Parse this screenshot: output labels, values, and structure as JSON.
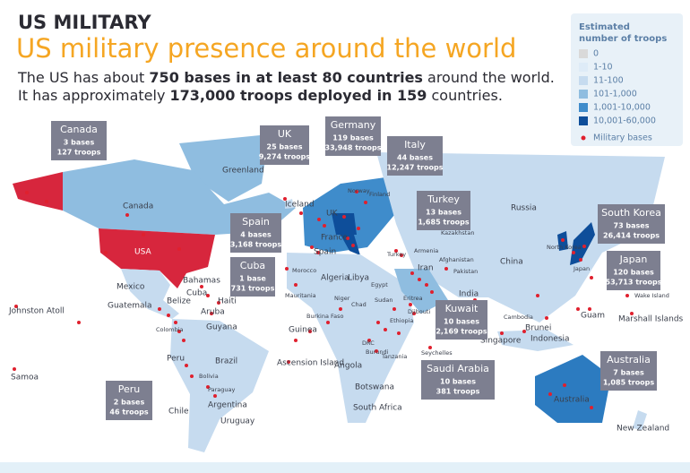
{
  "header": {
    "kicker": "US MILITARY",
    "title": "US military presence around the world",
    "subtitle": [
      [
        "The US has about ",
        "750 bases in at least 80 countries",
        " around the world."
      ],
      [
        "It has approximately ",
        "173,000 troops deployed in 159",
        " countries."
      ]
    ]
  },
  "legend": {
    "title": [
      "Estimated",
      "number of troops"
    ],
    "items": [
      {
        "label": "0",
        "color": "#d9d9d9"
      },
      {
        "label": "1-10",
        "color": "#deebf7"
      },
      {
        "label": "11-100",
        "color": "#c6dbef"
      },
      {
        "label": "101-1,000",
        "color": "#8fbde0"
      },
      {
        "label": "1,001-10,000",
        "color": "#3f8ccb"
      },
      {
        "label": "10,001-60,000",
        "color": "#0e4e9a"
      }
    ],
    "bases": {
      "label": "Military bases",
      "color": "#e0202e"
    }
  },
  "callouts": [
    {
      "name": "Canada",
      "bases": "3 bases",
      "troops": "127 troops"
    },
    {
      "name": "UK",
      "bases": "25 bases",
      "troops": "9,274 troops"
    },
    {
      "name": "Germany",
      "bases": "119 bases",
      "troops": "33,948 troops"
    },
    {
      "name": "Italy",
      "bases": "44 bases",
      "troops": "12,247 troops"
    },
    {
      "name": "Turkey",
      "bases": "13 bases",
      "troops": "1,685 troops"
    },
    {
      "name": "Spain",
      "bases": "4 bases",
      "troops": "3,168 troops"
    },
    {
      "name": "Cuba",
      "bases": "1 base",
      "troops": "731 troops"
    },
    {
      "name": "South Korea",
      "bases": "73 bases",
      "troops": "26,414 troops"
    },
    {
      "name": "Japan",
      "bases": "120 bases",
      "troops": "53,713 troops"
    },
    {
      "name": "Kuwait",
      "bases": "10 bases",
      "troops": "2,169 troops"
    },
    {
      "name": "Saudi Arabia",
      "bases": "10 bases",
      "troops": "381 troops"
    },
    {
      "name": "Australia",
      "bases": "7 bases",
      "troops": "1,085 troops"
    },
    {
      "name": "Peru",
      "bases": "2 bases",
      "troops": "46 troops"
    }
  ],
  "map_labels": [
    "Greenland",
    "Canada",
    "Iceland",
    "Norway",
    "Finland",
    "Russia",
    "UK",
    "France",
    "Spain",
    "USA",
    "Kazakhstan",
    "Armenia",
    "Turkey",
    "Mexico",
    "Bahamas",
    "Cuba",
    "Haiti",
    "Belize",
    "Guatemala",
    "Aruba",
    "Morocco",
    "Algeria",
    "Libya",
    "Egypt",
    "Iran",
    "Afghanistan",
    "Pakistan",
    "China",
    "North Korea",
    "Japan",
    "India",
    "Johnston Atoll",
    "Mauritania",
    "Niger",
    "Chad",
    "Sudan",
    "Eritrea",
    "Djibouti",
    "Ethiopia",
    "Burkina Faso",
    "Guinea",
    "Colombia",
    "Guyana",
    "Cambodia",
    "Brunei",
    "Indonesia",
    "Singapore",
    "Guam",
    "Wake Island",
    "Marshall Islands",
    "Peru",
    "Brazil",
    "Bolivia",
    "Paraguay",
    "Chile",
    "Argentina",
    "Uruguay",
    "Ascension Island",
    "DRC",
    "Burundi",
    "Tanzania",
    "Seychelles",
    "Angola",
    "Botswana",
    "South Africa",
    "Samoa",
    "Australia",
    "New Zealand"
  ]
}
